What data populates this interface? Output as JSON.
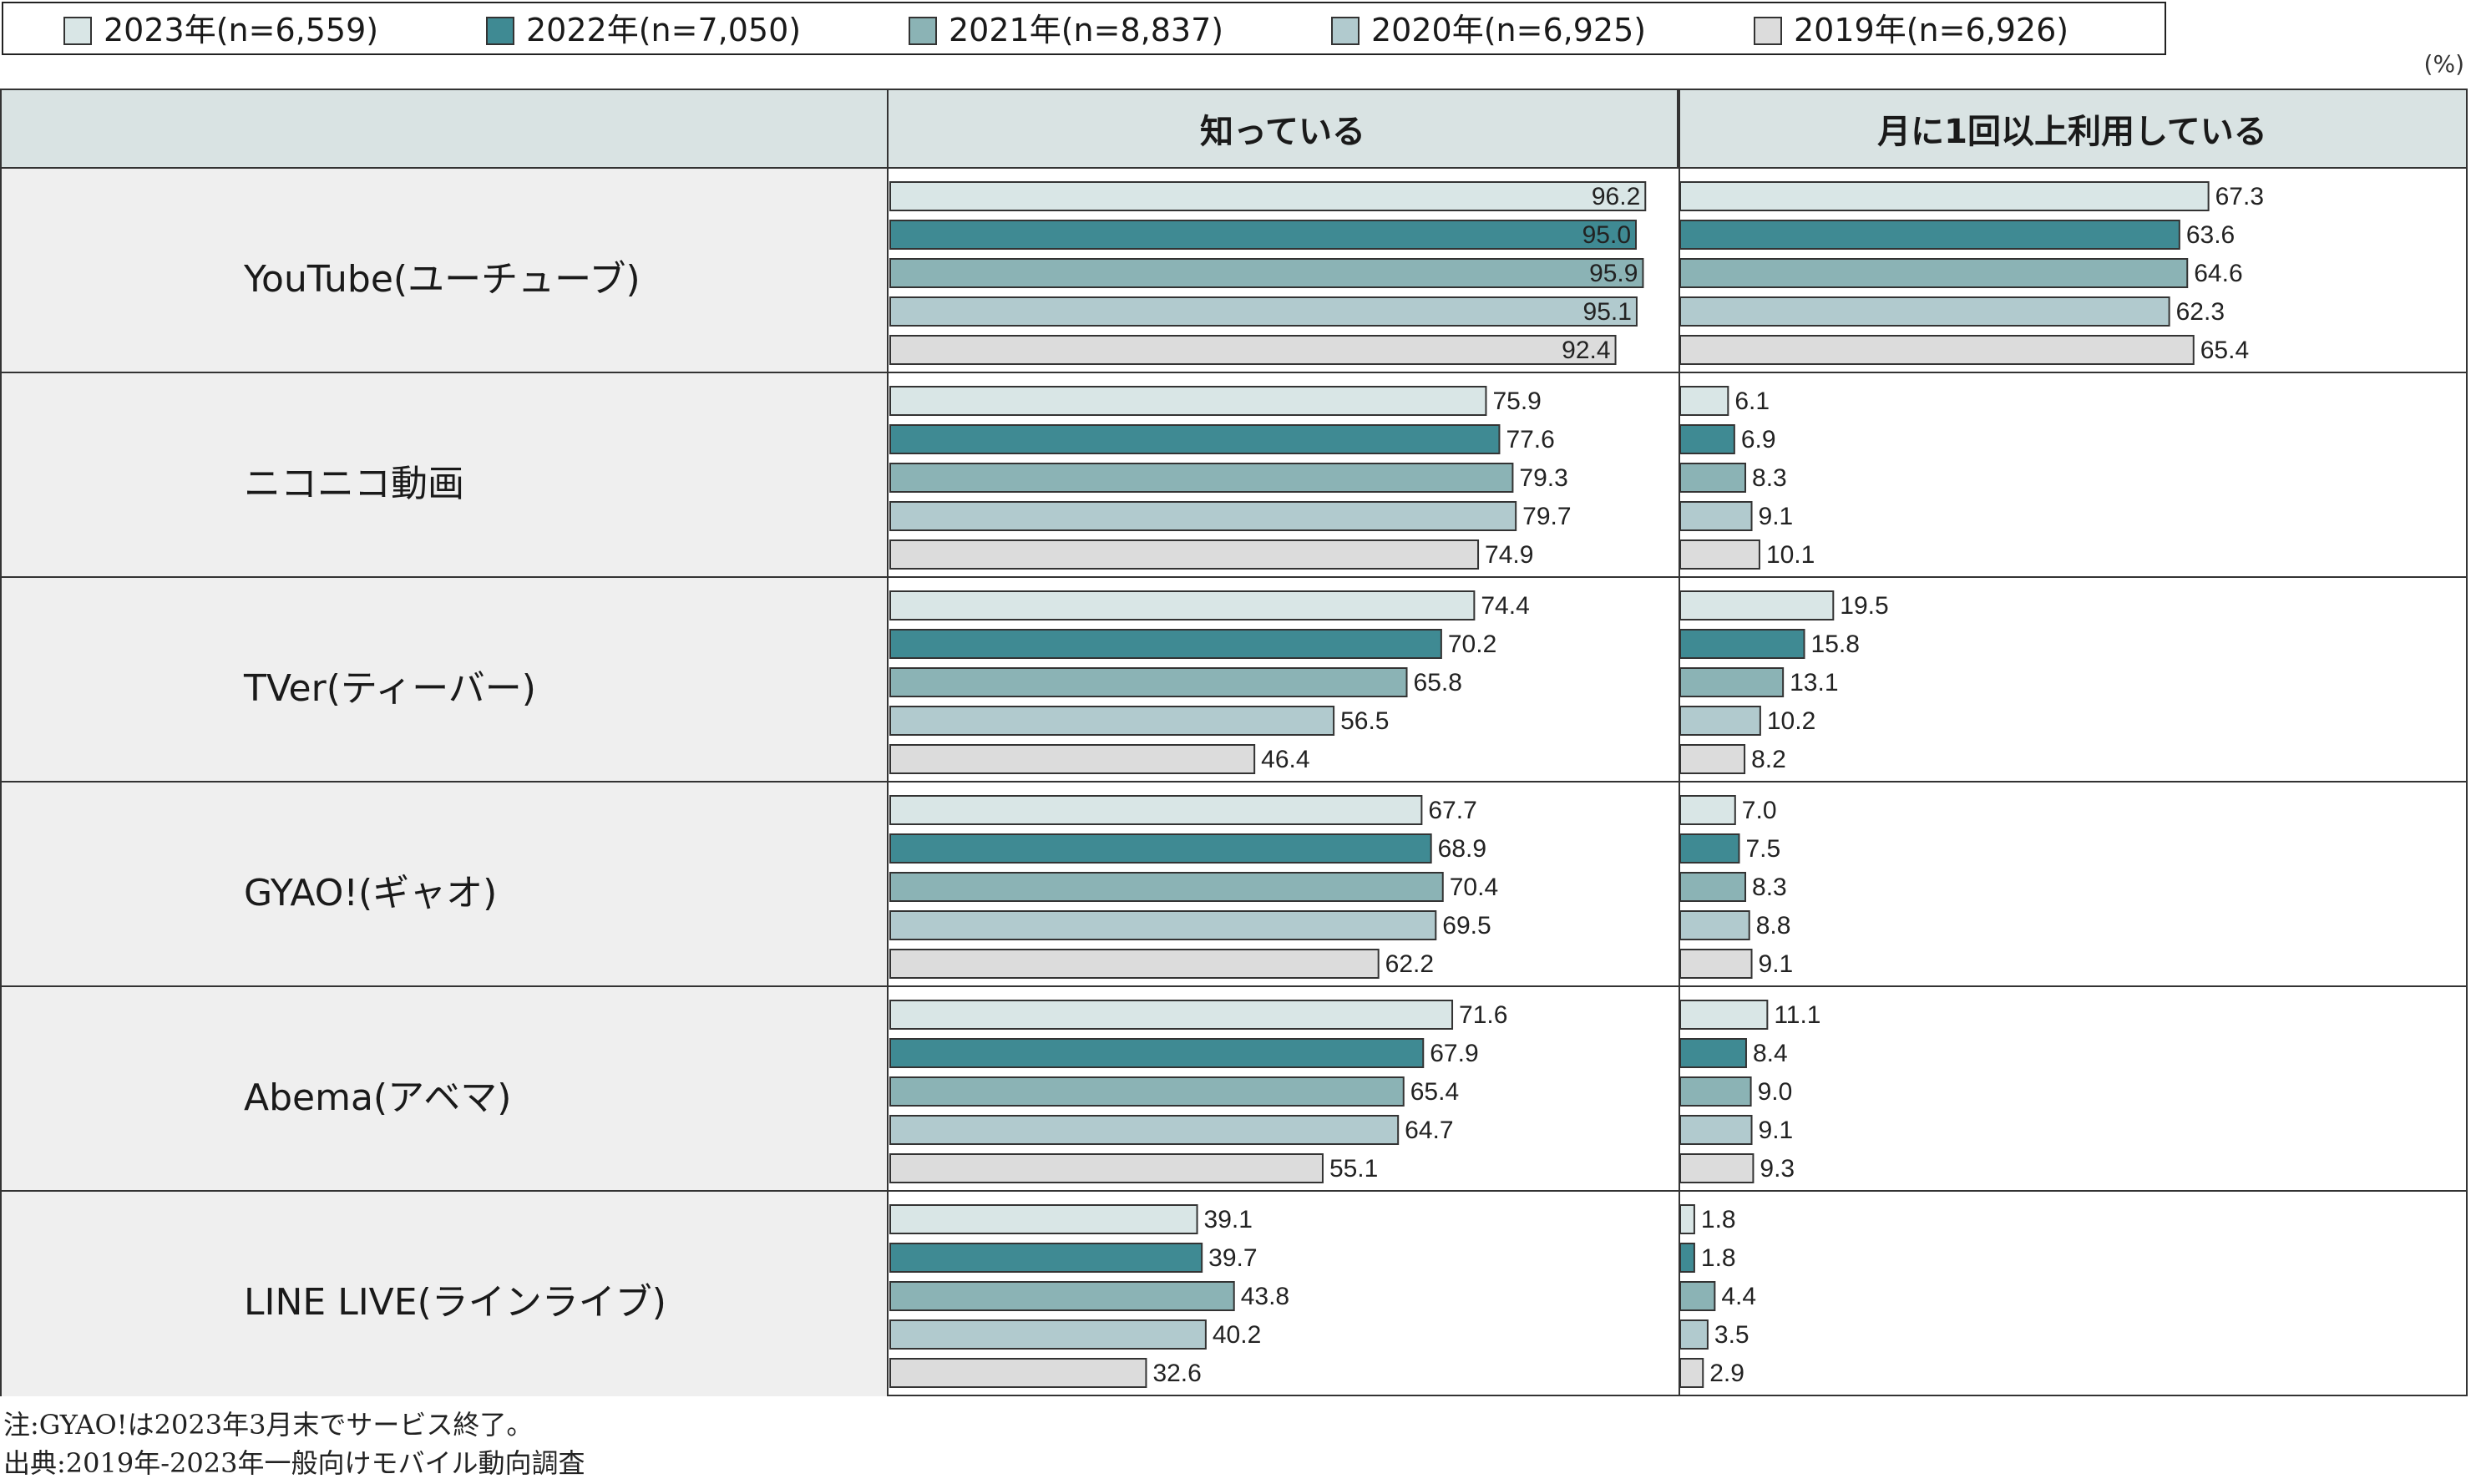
{
  "legend": [
    {
      "label": "2023年(n=6,559)",
      "color": "#d9e6e6"
    },
    {
      "label": "2022年(n=7,050)",
      "color": "#3f8a93"
    },
    {
      "label": "2021年(n=8,837)",
      "color": "#8bb3b5"
    },
    {
      "label": "2020年(n=6,925)",
      "color": "#b1cace"
    },
    {
      "label": "2019年(n=6,926)",
      "color": "#dcdcdc"
    }
  ],
  "unit": "(%)",
  "columns": [
    "知っている",
    "月に1回以上利用している"
  ],
  "chart_data": {
    "type": "bar",
    "orientation": "horizontal",
    "categories": [
      "YouTube(ユーチューブ)",
      "ニコニコ動画",
      "TVer(ティーバー)",
      "GYAO!(ギャオ)",
      "Abema(アベマ)",
      "LINE LIVE(ラインライブ)"
    ],
    "panels": [
      {
        "name": "知っている",
        "series": [
          {
            "name": "2023年(n=6,559)",
            "values": [
              96.2,
              75.9,
              74.4,
              67.7,
              71.6,
              39.1
            ]
          },
          {
            "name": "2022年(n=7,050)",
            "values": [
              95.0,
              77.6,
              70.2,
              68.9,
              67.9,
              39.7
            ]
          },
          {
            "name": "2021年(n=8,837)",
            "values": [
              95.9,
              79.3,
              65.8,
              70.4,
              65.4,
              43.8
            ]
          },
          {
            "name": "2020年(n=6,925)",
            "values": [
              95.1,
              79.7,
              56.5,
              69.5,
              64.7,
              40.2
            ]
          },
          {
            "name": "2019年(n=6,926)",
            "values": [
              92.4,
              74.9,
              46.4,
              62.2,
              55.1,
              32.6
            ]
          }
        ]
      },
      {
        "name": "月に1回以上利用している",
        "series": [
          {
            "name": "2023年(n=6,559)",
            "values": [
              67.3,
              6.1,
              19.5,
              7.0,
              11.1,
              1.8
            ]
          },
          {
            "name": "2022年(n=7,050)",
            "values": [
              63.6,
              6.9,
              15.8,
              7.5,
              8.4,
              1.8
            ]
          },
          {
            "name": "2021年(n=8,837)",
            "values": [
              64.6,
              8.3,
              13.1,
              8.3,
              9.0,
              4.4
            ]
          },
          {
            "name": "2020年(n=6,925)",
            "values": [
              62.3,
              9.1,
              10.2,
              8.8,
              9.1,
              3.5
            ]
          },
          {
            "name": "2019年(n=6,926)",
            "values": [
              65.4,
              10.1,
              8.2,
              9.1,
              9.3,
              2.9
            ]
          }
        ]
      }
    ],
    "xlim": [
      0,
      100
    ]
  },
  "notes": [
    "注:GYAO!は2023年3月末でサービス終了。",
    "出典:2019年-2023年一般向けモバイル動向調査"
  ]
}
